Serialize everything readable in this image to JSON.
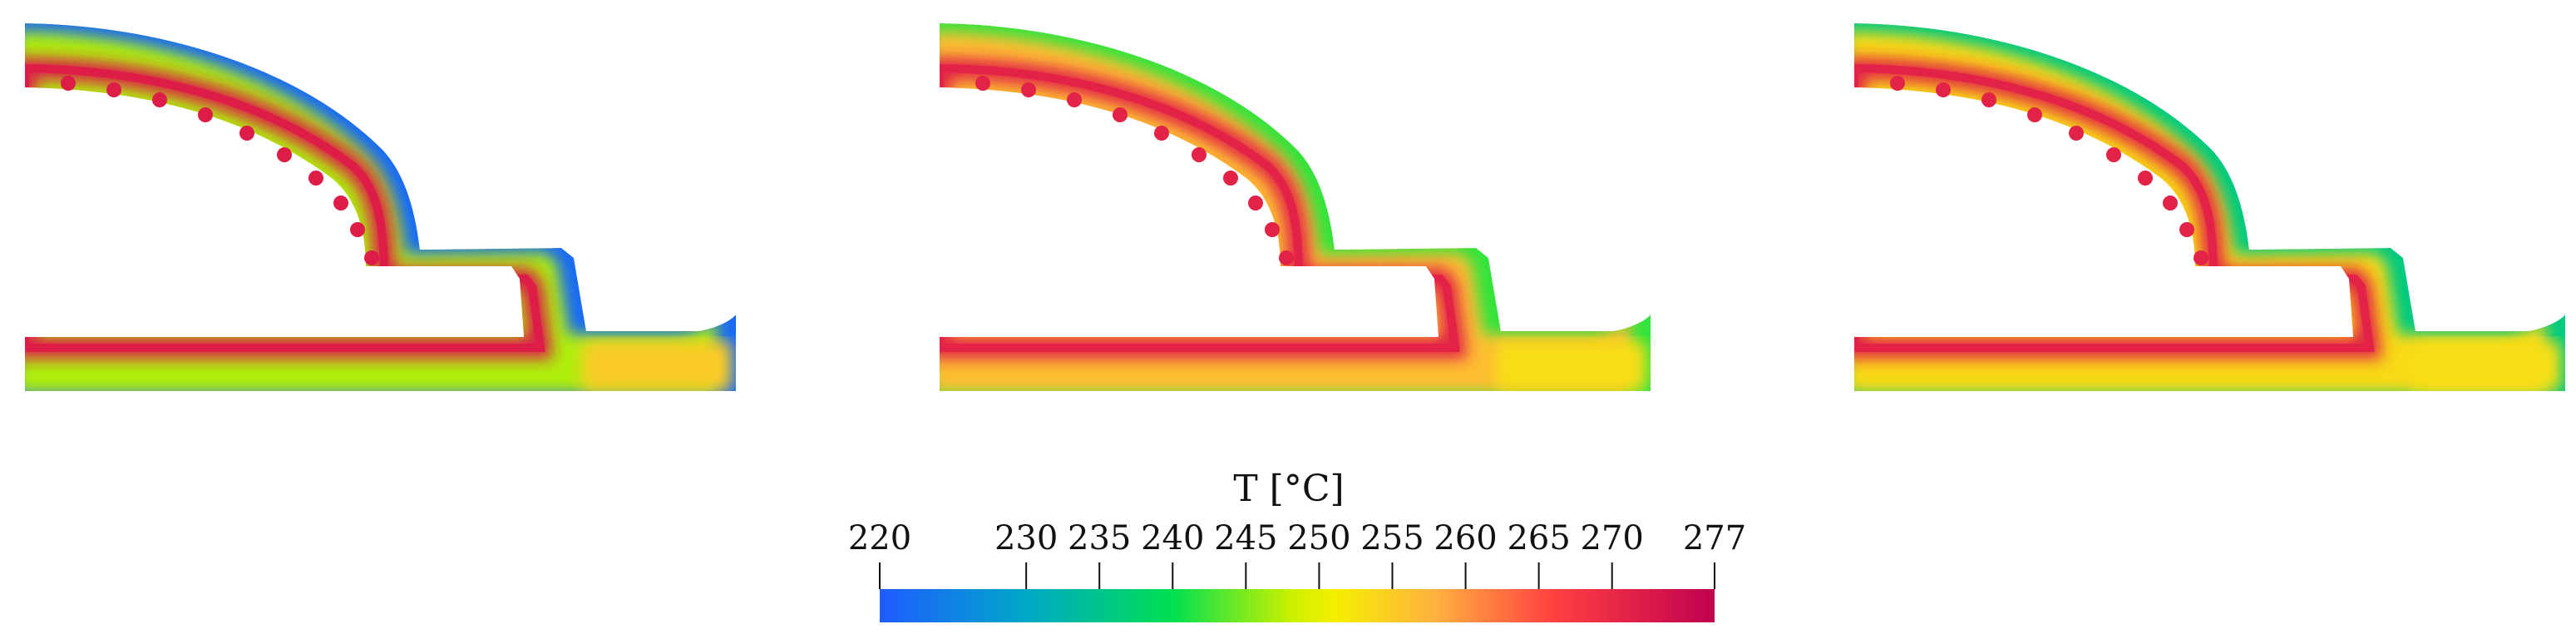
{
  "colorbar": {
    "title": "T [°C]",
    "min": 220,
    "max": 277,
    "ticks": [
      220,
      230,
      235,
      240,
      245,
      250,
      255,
      260,
      265,
      270,
      277
    ],
    "stops": [
      {
        "value": 220,
        "color": "#1f5cff"
      },
      {
        "value": 230,
        "color": "#00a8c8"
      },
      {
        "value": 240,
        "color": "#00e050"
      },
      {
        "value": 248,
        "color": "#c8f000"
      },
      {
        "value": 251,
        "color": "#f4f000"
      },
      {
        "value": 258,
        "color": "#ffb040"
      },
      {
        "value": 266,
        "color": "#ff4040"
      },
      {
        "value": 277,
        "color": "#c0004f"
      }
    ]
  },
  "panels": [
    {
      "id": "panel-1",
      "inner_value": 272,
      "outer_value": 222,
      "runner_value": 255
    },
    {
      "id": "panel-2",
      "inner_value": 271,
      "outer_value": 242,
      "runner_value": 253
    },
    {
      "id": "panel-3",
      "inner_value": 271,
      "outer_value": 236,
      "runner_value": 253
    }
  ]
}
